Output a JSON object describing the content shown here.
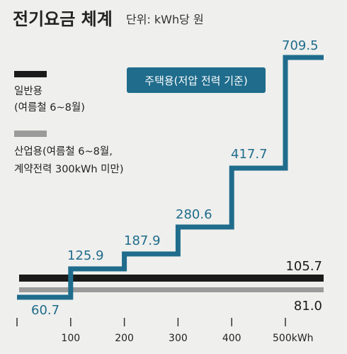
{
  "chart_data": {
    "type": "line",
    "title": "전기요금 체계",
    "subtitle": "단위: kWh당 원",
    "x_ticks": [
      {
        "value": 0,
        "label": ""
      },
      {
        "value": 100,
        "label": "100"
      },
      {
        "value": 200,
        "label": "200"
      },
      {
        "value": 300,
        "label": "300"
      },
      {
        "value": 400,
        "label": "400"
      },
      {
        "value": 500,
        "label": "500kWh"
      }
    ],
    "xlim": [
      0,
      570
    ],
    "series": [
      {
        "name": "주택용(저압 전력 기준)",
        "color": "#1f6c8c",
        "steps": [
          {
            "from": 0,
            "to": 100,
            "value": 60.7,
            "label": "60.7"
          },
          {
            "from": 100,
            "to": 200,
            "value": 125.9,
            "label": "125.9"
          },
          {
            "from": 200,
            "to": 300,
            "value": 187.9,
            "label": "187.9"
          },
          {
            "from": 300,
            "to": 400,
            "value": 280.6,
            "label": "280.6"
          },
          {
            "from": 400,
            "to": 500,
            "value": 417.7,
            "label": "417.7"
          },
          {
            "from": 500,
            "to": 570,
            "value": 709.5,
            "label": "709.5"
          }
        ]
      },
      {
        "name": "일반용",
        "name_detail": "(여름철 6~8월)",
        "color": "#1a1a1a",
        "value": 105.7,
        "label": "105.7"
      },
      {
        "name": "산업용(여름철 6~8월,",
        "name_detail": "계약전력 300kWh 미만)",
        "color": "#9b9b9b",
        "value": 81.0,
        "label": "81.0"
      }
    ]
  }
}
